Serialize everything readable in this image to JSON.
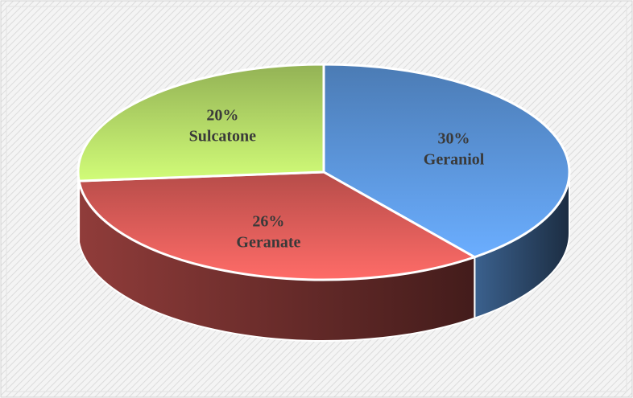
{
  "chart_data": {
    "type": "pie",
    "categories": [
      "Geraniol",
      "Geranate",
      "Sulcatone"
    ],
    "values": [
      30,
      26,
      20
    ],
    "value_labels": [
      "30%",
      "26%",
      "20%"
    ],
    "colors": [
      "#4f81bd",
      "#c0504d",
      "#9bbb59"
    ]
  }
}
